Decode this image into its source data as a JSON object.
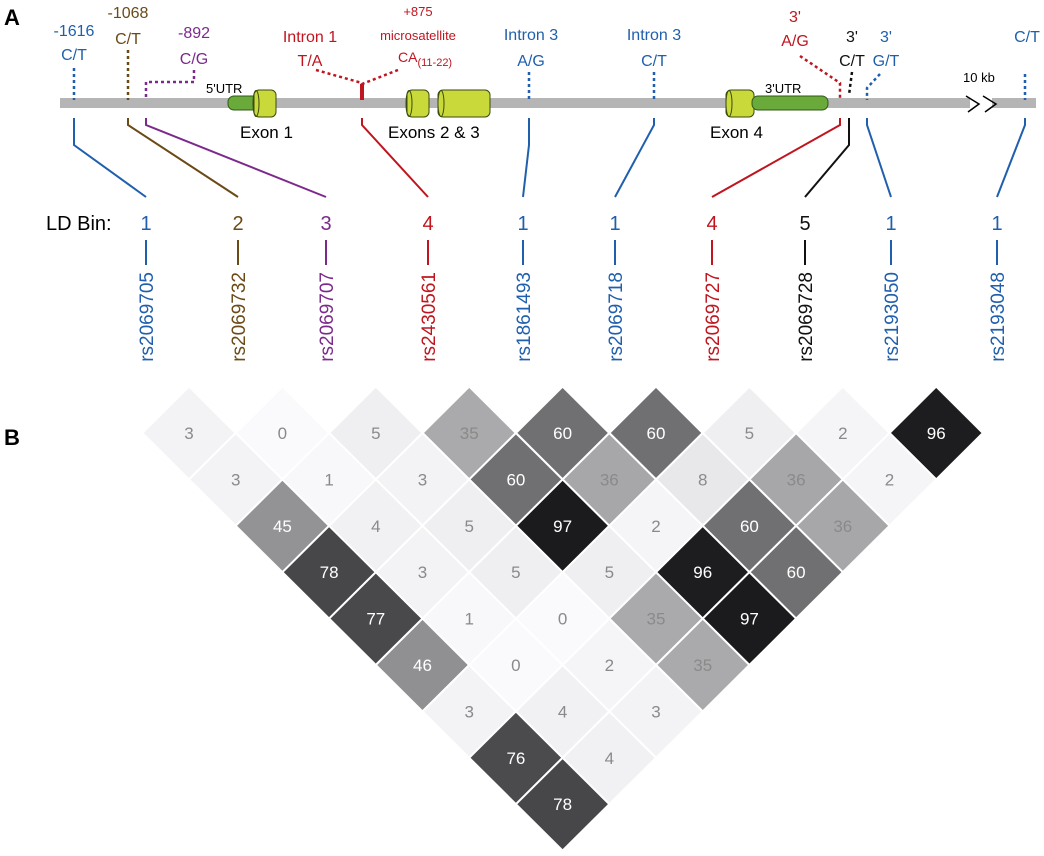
{
  "panels": {
    "a": "A",
    "b": "B"
  },
  "colors": {
    "blue": "#1f5fad",
    "brown": "#6b4a16",
    "purple": "#7b2a8c",
    "red": "#c0151f",
    "black": "#111111",
    "chromosome": "#b5b5b5",
    "exon": "#c9d93a",
    "utr": "#6aaa3a"
  },
  "chromosome": {
    "gap_label": "10 kb"
  },
  "gene": {
    "utr5_label": "5'UTR",
    "utr3_label": "3'UTR",
    "exon1_label": "Exon 1",
    "exons23_label": "Exons 2 & 3",
    "exon4_label": "Exon 4"
  },
  "ld_bin_label": "LD Bin:",
  "snps": [
    {
      "rs": "rs2069705",
      "bin": "1",
      "color": "blue",
      "lines": [
        "-1616",
        "C/T"
      ]
    },
    {
      "rs": "rs2069732",
      "bin": "2",
      "color": "brown",
      "lines": [
        "-1068",
        "C/T"
      ]
    },
    {
      "rs": "rs2069707",
      "bin": "3",
      "color": "purple",
      "lines": [
        "-892",
        "C/G"
      ]
    },
    {
      "rs": "rs2430561",
      "bin": "4",
      "color": "red",
      "lines": [
        "Intron 1",
        "T/A"
      ]
    },
    {
      "rs": "rs1861493",
      "bin": "1",
      "color": "blue",
      "lines": [
        "Intron 3",
        "A/G"
      ]
    },
    {
      "rs": "rs2069718",
      "bin": "1",
      "color": "blue",
      "lines": [
        "Intron 3",
        "C/T"
      ]
    },
    {
      "rs": "rs2069727",
      "bin": "4",
      "color": "red",
      "lines": [
        "3'",
        "A/G"
      ]
    },
    {
      "rs": "rs2069728",
      "bin": "5",
      "color": "black",
      "lines": [
        "3'",
        "C/T"
      ]
    },
    {
      "rs": "rs2193050",
      "bin": "1",
      "color": "blue",
      "lines": [
        "3'",
        "G/T"
      ]
    },
    {
      "rs": "rs2193048",
      "bin": "1",
      "color": "blue",
      "lines": [
        "C/T"
      ]
    }
  ],
  "microsatellite": {
    "lines": [
      "+875",
      "microsatellite"
    ],
    "ca": "CA",
    "range": "(11-22)"
  },
  "ld_matrix": {
    "rows": [
      [
        "3",
        "0",
        "5",
        "35",
        "60",
        "60",
        "5",
        "2",
        "96"
      ],
      [
        "3",
        "1",
        "3",
        "60",
        "36",
        "8",
        "36",
        "2"
      ],
      [
        "45",
        "4",
        "5",
        "97",
        "2",
        "60",
        "36"
      ],
      [
        "78",
        "3",
        "5",
        "5",
        "96",
        "60"
      ],
      [
        "77",
        "1",
        "0",
        "35",
        "97"
      ],
      [
        "46",
        "0",
        "2",
        "35"
      ],
      [
        "3",
        "4",
        "3"
      ],
      [
        "76",
        "4"
      ],
      [
        "78"
      ]
    ]
  }
}
